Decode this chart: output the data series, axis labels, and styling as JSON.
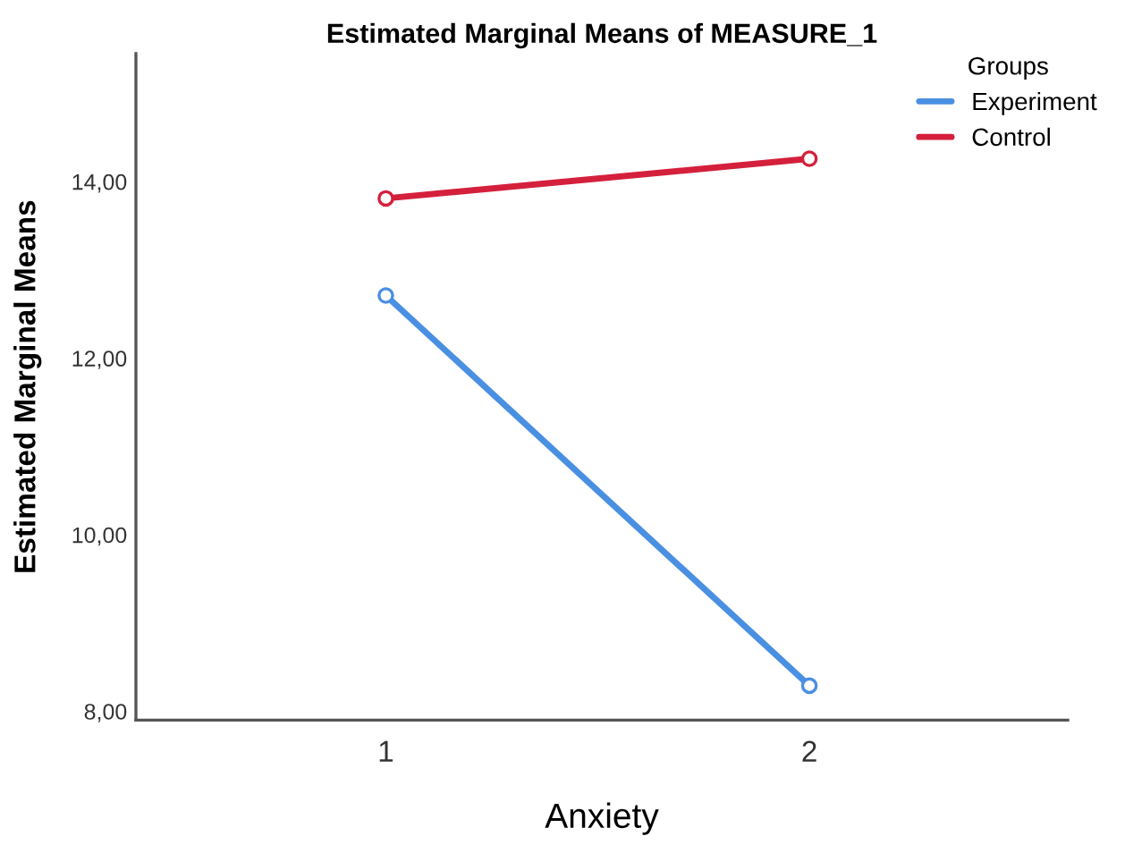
{
  "chart_data": {
    "type": "line",
    "title": "Estimated Marginal Means of MEASURE_1",
    "xlabel": "Anxiety",
    "ylabel": "Estimated Marginal Means",
    "legend_title": "Groups",
    "legend": "top right",
    "marker": "circle",
    "line_style": "solid",
    "grid": false,
    "x": [
      1,
      2
    ],
    "xlim": [
      0.41,
      2.61
    ],
    "xticks": [
      1,
      2
    ],
    "ylim": [
      7.9,
      15.45
    ],
    "yticks": [
      {
        "value": 8,
        "label": "8,00"
      },
      {
        "value": 10,
        "label": "10,00"
      },
      {
        "value": 12,
        "label": "12,00"
      },
      {
        "value": 14,
        "label": "14,00"
      }
    ],
    "series": [
      {
        "name": "Experiment",
        "color": "#4a90e2",
        "values": [
          12.71,
          8.29
        ]
      },
      {
        "name": "Control",
        "color": "#d4203c",
        "values": [
          13.81,
          14.26
        ]
      }
    ]
  }
}
